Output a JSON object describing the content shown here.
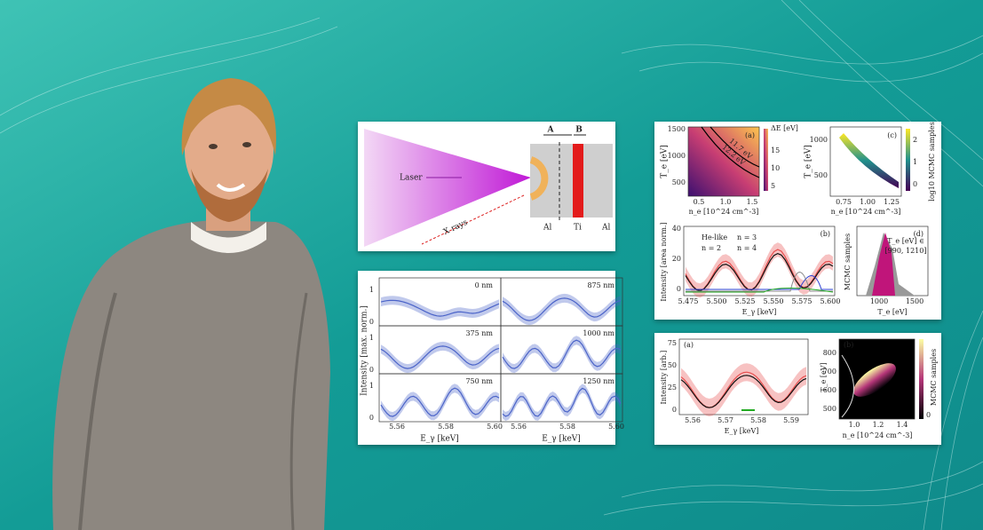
{
  "setup": {
    "a": "A",
    "b": "B",
    "laser": "Laser",
    "x_rays": "X rays",
    "al_left": "Al",
    "ti": "Ti",
    "al_right": "Al"
  },
  "spectra": {
    "y_label": "Intensity [max. norm.]",
    "x_label": "E_γ [keV]",
    "x_ticks": [
      "5.56",
      "5.58",
      "5.60"
    ],
    "y_ticks": [
      "0",
      "1"
    ],
    "depths": [
      "0 nm",
      "875 nm",
      "375 nm",
      "1000 nm",
      "750 nm",
      "1250 nm"
    ]
  },
  "analysis": {
    "a": {
      "tag": "(a)",
      "y_label": "T_e [eV]",
      "y_ticks": [
        "1500",
        "1000",
        "500"
      ],
      "x_ticks": [
        "0.5",
        "1.0",
        "1.5"
      ],
      "x_label": "n_e [10^24 cm^-3]",
      "cbar_label": "ΔE [eV]",
      "cbar_ticks": [
        "15",
        "10",
        "5"
      ],
      "contours": [
        "11.7 eV",
        "12.2 eV"
      ]
    },
    "c": {
      "tag": "(c)",
      "y_label": "T_e [eV]",
      "y_ticks": [
        "1000",
        "500"
      ],
      "x_ticks": [
        "0.75",
        "1.00",
        "1.25"
      ],
      "x_label": "n_e [10^24 cm^-3]",
      "cbar_label": "log10 MCMC samples",
      "cbar_ticks": [
        "2",
        "1",
        "0"
      ]
    },
    "b": {
      "tag": "(b)",
      "y_label": "Intensity [area norm.]",
      "y_ticks": [
        "40",
        "20",
        "0"
      ],
      "legend": [
        "He-like",
        "n = 3",
        "n = 2",
        "n = 4"
      ],
      "x_ticks": [
        "5.475",
        "5.500",
        "5.525",
        "5.550",
        "5.575",
        "5.600"
      ],
      "x_label": "E_γ [keV]"
    },
    "d": {
      "tag": "(d)",
      "y_label": "MCMC samples",
      "note": [
        "T_e [eV] ∈",
        "[990, 1210]"
      ],
      "x_ticks": [
        "1000",
        "1500"
      ],
      "x_label": "T_e [eV]"
    }
  },
  "fit": {
    "a": {
      "tag": "(a)",
      "y_label": "Intensity [arb.]",
      "y_ticks": [
        "75",
        "50",
        "25",
        "0"
      ],
      "x_ticks": [
        "5.56",
        "5.57",
        "5.58",
        "5.59"
      ],
      "x_label": "E_γ [keV]"
    },
    "b": {
      "tag": "(b)",
      "y_label": "T_e [eV]",
      "y_ticks": [
        "800",
        "700",
        "600",
        "500"
      ],
      "x_ticks": [
        "1.0",
        "1.2",
        "1.4"
      ],
      "x_label": "n_e [10^24 cm^-3]",
      "cbar_label": "MCMC samples",
      "cbar_ticks": [
        "0"
      ]
    }
  }
}
